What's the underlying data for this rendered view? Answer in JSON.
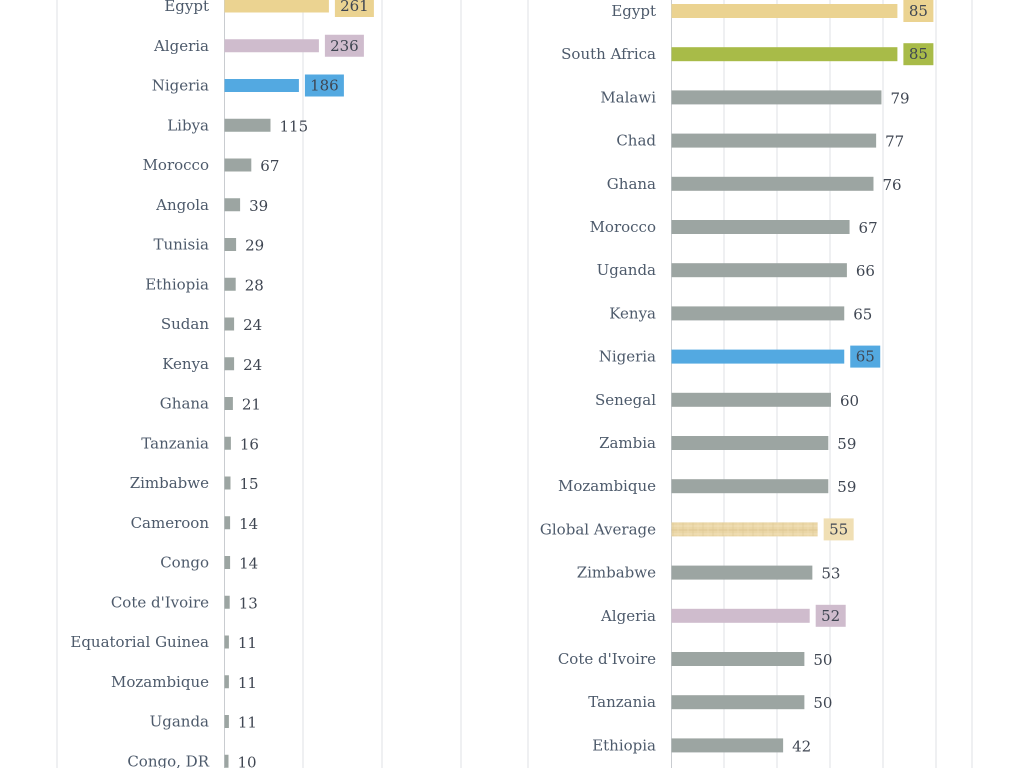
{
  "chart_data": [
    {
      "type": "bar",
      "orientation": "horizontal",
      "grid": true,
      "categories": [
        "Egypt",
        "Algeria",
        "Nigeria",
        "Libya",
        "Morocco",
        "Angola",
        "Tunisia",
        "Ethiopia",
        "Sudan",
        "Kenya",
        "Ghana",
        "Tanzania",
        "Zimbabwe",
        "Cameroon",
        "Congo",
        "Cote d'Ivoire",
        "Equatorial Guinea",
        "Mozambique",
        "Uganda",
        "Congo, DR"
      ],
      "values": [
        261,
        236,
        186,
        115,
        67,
        39,
        29,
        28,
        24,
        24,
        21,
        16,
        15,
        14,
        14,
        13,
        11,
        11,
        11,
        10
      ],
      "value_labels": [
        "261",
        "236",
        "186",
        "115",
        "67",
        "39",
        "29",
        "28",
        "24",
        "24",
        "21",
        "16",
        "15",
        "14",
        "14",
        "13",
        "11",
        "11",
        "11",
        "10"
      ],
      "highlights": {
        "Egypt": "#ebd391",
        "Algeria": "#cfbccd",
        "Nigeria": "#53a9e1"
      },
      "default_color": "#9ca5a2",
      "xlim": [
        0,
        400
      ]
    },
    {
      "type": "bar",
      "orientation": "horizontal",
      "grid": true,
      "categories": [
        "Egypt",
        "South Africa",
        "Malawi",
        "Chad",
        "Ghana",
        "Morocco",
        "Uganda",
        "Kenya",
        "Nigeria",
        "Senegal",
        "Zambia",
        "Mozambique",
        "Global Average",
        "Zimbabwe",
        "Algeria",
        "Cote d'Ivoire",
        "Tanzania",
        "Ethiopia"
      ],
      "values": [
        85,
        85,
        79,
        77,
        76,
        67,
        66,
        65,
        65,
        60,
        59,
        59,
        55,
        53,
        52,
        50,
        50,
        42
      ],
      "value_labels": [
        "85",
        "85",
        "79",
        "77",
        "76",
        "67",
        "66",
        "65",
        "65",
        "60",
        "59",
        "59",
        "55",
        "53",
        "52",
        "50",
        "50",
        "42"
      ],
      "highlights": {
        "Egypt": "#ebd391",
        "South Africa": "#a8bb48",
        "Nigeria": "#53a9e1",
        "Global Average": "#e9d6a8",
        "Algeria": "#cfbccd"
      },
      "textured": [
        "Global Average"
      ],
      "default_color": "#9ca5a2",
      "xlim": [
        0,
        113
      ]
    }
  ]
}
